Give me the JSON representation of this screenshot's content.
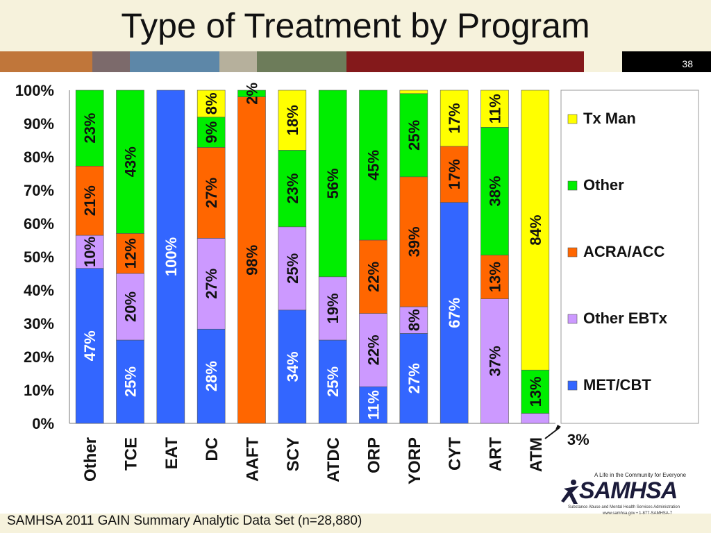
{
  "slide": {
    "title": "Type of Treatment by Program",
    "number": "38",
    "footer": "SAMHSA 2011 GAIN Summary Analytic Data Set (n=28,880)",
    "strip_colors": [
      "#c0763a",
      "#7c6a6b",
      "#5d87a8",
      "#b6b09c",
      "#6d7c5a",
      "#b69656",
      "#84191b",
      "#f6f2dc",
      "#000000"
    ],
    "logo": {
      "name": "SAMHSA",
      "tagline": "A Life in the Community for Everyone",
      "subtitle": "Substance Abuse and Mental Health Services Administration",
      "web": "www.samhsa.gov • 1-877-SAMHSA-7"
    }
  },
  "chart_data": {
    "type": "bar",
    "stacked": true,
    "percent": true,
    "categories": [
      "Other",
      "TCE",
      "EAT",
      "DC",
      "AAFT",
      "SCY",
      "ATDC",
      "ORP",
      "YORP",
      "CYT",
      "ART",
      "ATM"
    ],
    "ylim": [
      0,
      100
    ],
    "yticks": [
      "0%",
      "10%",
      "20%",
      "30%",
      "40%",
      "50%",
      "60%",
      "70%",
      "80%",
      "90%",
      "100%"
    ],
    "series": [
      {
        "name": "MET/CBT",
        "color": "#3366ff",
        "label_color": "#ffffff",
        "values": [
          47,
          25,
          100,
          28,
          0,
          34,
          25,
          11,
          27,
          67,
          0,
          0
        ],
        "labels": [
          "47%",
          "25%",
          "100%",
          "28%",
          "",
          "34%",
          "25%",
          "11%",
          "27%",
          "67%",
          "",
          ""
        ]
      },
      {
        "name": "Other EBTx",
        "color": "#cc99ff",
        "label_color": "#111111",
        "values": [
          10,
          20,
          0,
          27,
          0,
          25,
          19,
          22,
          8,
          0,
          37,
          3
        ],
        "labels": [
          "10%",
          "20%",
          "",
          "27%",
          "",
          "25%",
          "19%",
          "22%",
          "8%",
          "",
          "37%",
          ""
        ]
      },
      {
        "name": "ACRA/ACC",
        "color": "#ff6600",
        "label_color": "#111111",
        "values": [
          21,
          12,
          0,
          27,
          98,
          0,
          0,
          22,
          39,
          17,
          13,
          0
        ],
        "labels": [
          "21%",
          "12%",
          "",
          "27%",
          "98%",
          "",
          "",
          "22%",
          "39%",
          "17%",
          "13%",
          ""
        ]
      },
      {
        "name": "Other",
        "color": "#00ee00",
        "label_color": "#111111",
        "values": [
          23,
          43,
          0,
          9,
          2,
          23,
          56,
          45,
          25,
          0,
          38,
          13
        ],
        "labels": [
          "23%",
          "43%",
          "",
          "9%",
          "2%",
          "23%",
          "56%",
          "45%",
          "25%",
          "",
          "38%",
          "13%"
        ]
      },
      {
        "name": "Tx Man",
        "color": "#ffff00",
        "label_color": "#111111",
        "values": [
          0,
          0,
          0,
          8,
          0,
          18,
          0,
          0,
          1,
          17,
          11,
          84
        ],
        "labels": [
          "",
          "",
          "",
          "8%",
          "",
          "18%",
          "",
          "",
          "",
          "17%",
          "11%",
          "84%"
        ]
      }
    ],
    "legend": {
      "position": "right",
      "order": [
        "Tx Man",
        "Other",
        "ACRA/ACC",
        "Other EBTx",
        "MET/CBT"
      ]
    },
    "annotations": [
      {
        "text": "3%",
        "category": "ATM",
        "series": "Other EBTx"
      }
    ],
    "grid": false
  }
}
